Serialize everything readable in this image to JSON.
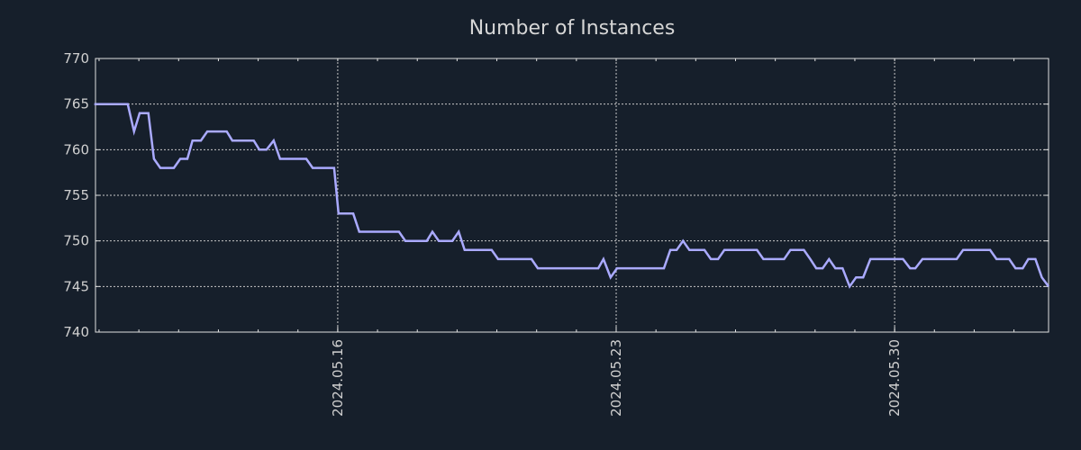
{
  "chart_data": {
    "type": "line",
    "title": "Number of Instances",
    "xlabel": "",
    "ylabel": "",
    "x_unit": "days since 2024.05.16",
    "xlim": [
      -6.09,
      17.87
    ],
    "ylim": [
      740,
      770
    ],
    "grid": true,
    "y_ticks": [
      740,
      745,
      750,
      755,
      760,
      765,
      770
    ],
    "x_ticks": [
      {
        "value": 0,
        "label": "2024.05.16"
      },
      {
        "value": 7,
        "label": "2024.05.23"
      },
      {
        "value": 14,
        "label": "2024.05.30"
      }
    ],
    "x_minor_ticks_every_days": 1,
    "line_color": "#aaaaff",
    "series": [
      {
        "name": "Number of Instances",
        "points": [
          [
            -6.12,
            765
          ],
          [
            -5.28,
            765
          ],
          [
            -5.12,
            762
          ],
          [
            -4.98,
            764
          ],
          [
            -4.76,
            764
          ],
          [
            -4.62,
            759
          ],
          [
            -4.46,
            758
          ],
          [
            -4.12,
            758
          ],
          [
            -3.96,
            759
          ],
          [
            -3.78,
            759
          ],
          [
            -3.65,
            761
          ],
          [
            -3.44,
            761
          ],
          [
            -3.28,
            762
          ],
          [
            -2.79,
            762
          ],
          [
            -2.65,
            761
          ],
          [
            -2.11,
            761
          ],
          [
            -1.97,
            760
          ],
          [
            -1.79,
            760
          ],
          [
            -1.61,
            761
          ],
          [
            -1.45,
            759
          ],
          [
            -0.79,
            759
          ],
          [
            -0.63,
            758
          ],
          [
            -0.09,
            758
          ],
          [
            0.02,
            753
          ],
          [
            0.39,
            753
          ],
          [
            0.54,
            751
          ],
          [
            1.54,
            751
          ],
          [
            1.7,
            750
          ],
          [
            2.24,
            750
          ],
          [
            2.38,
            751
          ],
          [
            2.54,
            750
          ],
          [
            2.88,
            750
          ],
          [
            3.04,
            751
          ],
          [
            3.19,
            749
          ],
          [
            3.87,
            749
          ],
          [
            4.03,
            748
          ],
          [
            4.87,
            748
          ],
          [
            5.03,
            747
          ],
          [
            6.55,
            747
          ],
          [
            6.68,
            748
          ],
          [
            6.86,
            746
          ],
          [
            7.02,
            747
          ],
          [
            8.2,
            747
          ],
          [
            8.36,
            749
          ],
          [
            8.52,
            749
          ],
          [
            8.68,
            750
          ],
          [
            8.84,
            749
          ],
          [
            9.22,
            749
          ],
          [
            9.38,
            748
          ],
          [
            9.56,
            748
          ],
          [
            9.72,
            749
          ],
          [
            10.54,
            749
          ],
          [
            10.7,
            748
          ],
          [
            11.22,
            748
          ],
          [
            11.38,
            749
          ],
          [
            11.72,
            749
          ],
          [
            11.88,
            748
          ],
          [
            12.03,
            747
          ],
          [
            12.19,
            747
          ],
          [
            12.35,
            748
          ],
          [
            12.51,
            747
          ],
          [
            12.69,
            747
          ],
          [
            12.87,
            745
          ],
          [
            13.03,
            746
          ],
          [
            13.21,
            746
          ],
          [
            13.39,
            748
          ],
          [
            14.21,
            748
          ],
          [
            14.39,
            747
          ],
          [
            14.52,
            747
          ],
          [
            14.7,
            748
          ],
          [
            15.56,
            748
          ],
          [
            15.72,
            749
          ],
          [
            16.4,
            749
          ],
          [
            16.56,
            748
          ],
          [
            16.88,
            748
          ],
          [
            17.04,
            747
          ],
          [
            17.22,
            747
          ],
          [
            17.36,
            748
          ],
          [
            17.54,
            748
          ],
          [
            17.7,
            746
          ],
          [
            17.87,
            745
          ]
        ]
      }
    ]
  }
}
